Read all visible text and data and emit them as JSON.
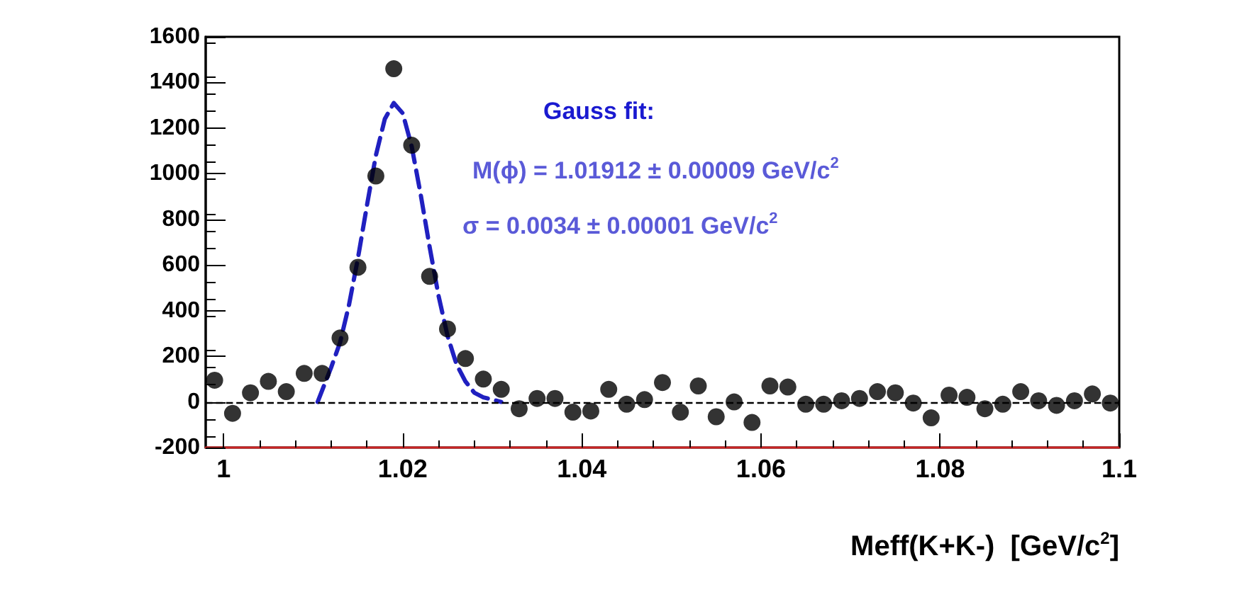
{
  "chart_data": {
    "type": "scatter",
    "xlabel": "Meff(K+K-)  [GeV/c$^{2}$]",
    "xlim": [
      0.998,
      1.1
    ],
    "xticks": [
      1,
      1.02,
      1.04,
      1.06,
      1.08,
      1.1
    ],
    "ylim": [
      -200,
      1600
    ],
    "yticks": [
      -200,
      0,
      200,
      400,
      600,
      800,
      1000,
      1200,
      1400,
      1600
    ],
    "grid": false,
    "marker": "circle",
    "series": [
      {
        "color": "#000000",
        "x": [
          0.999,
          1.001,
          1.003,
          1.005,
          1.007,
          1.009,
          1.011,
          1.013,
          1.015,
          1.017,
          1.019,
          1.021,
          1.023,
          1.025,
          1.027,
          1.029,
          1.031,
          1.033,
          1.035,
          1.037,
          1.039,
          1.041,
          1.043,
          1.045,
          1.047,
          1.049,
          1.051,
          1.053,
          1.055,
          1.057,
          1.059,
          1.061,
          1.063,
          1.065,
          1.067,
          1.069,
          1.071,
          1.073,
          1.075,
          1.077,
          1.079,
          1.081,
          1.083,
          1.085,
          1.087,
          1.089,
          1.091,
          1.093,
          1.095,
          1.097,
          1.099
        ],
        "values": [
          95,
          -50,
          40,
          90,
          45,
          125,
          125,
          280,
          590,
          990,
          1460,
          1125,
          550,
          320,
          190,
          100,
          55,
          -30,
          15,
          15,
          -45,
          -40,
          55,
          -10,
          10,
          85,
          -45,
          70,
          -65,
          0,
          -90,
          70,
          65,
          -10,
          -10,
          5,
          15,
          45,
          40,
          -5,
          -70,
          30,
          20,
          -30,
          -10,
          45,
          5,
          -15,
          5,
          35,
          -5
        ]
      },
      {
        "type": "line",
        "color": "#2020c0",
        "line_style": "dashed",
        "marker": "none",
        "x": [
          1.0105,
          1.012,
          1.013,
          1.014,
          1.015,
          1.016,
          1.017,
          1.018,
          1.019,
          1.02,
          1.021,
          1.022,
          1.023,
          1.024,
          1.025,
          1.026,
          1.027,
          1.028,
          1.029,
          1.031
        ],
        "values": [
          0,
          150,
          260,
          425,
          630,
          860,
          1080,
          1240,
          1310,
          1265,
          1120,
          910,
          680,
          465,
          290,
          165,
          90,
          40,
          20,
          0
        ]
      }
    ],
    "ref_lines": [
      {
        "axis": "y",
        "value": 0,
        "color": "#000000",
        "line_style": "dashed"
      }
    ],
    "annotations": [
      "Gauss fit:",
      "M(ϕ) = 1.01912 ± 0.00009 GeV/c$^{2}$",
      "σ = 0.0034 ± 0.00001 GeV/c$^{2}$"
    ]
  }
}
